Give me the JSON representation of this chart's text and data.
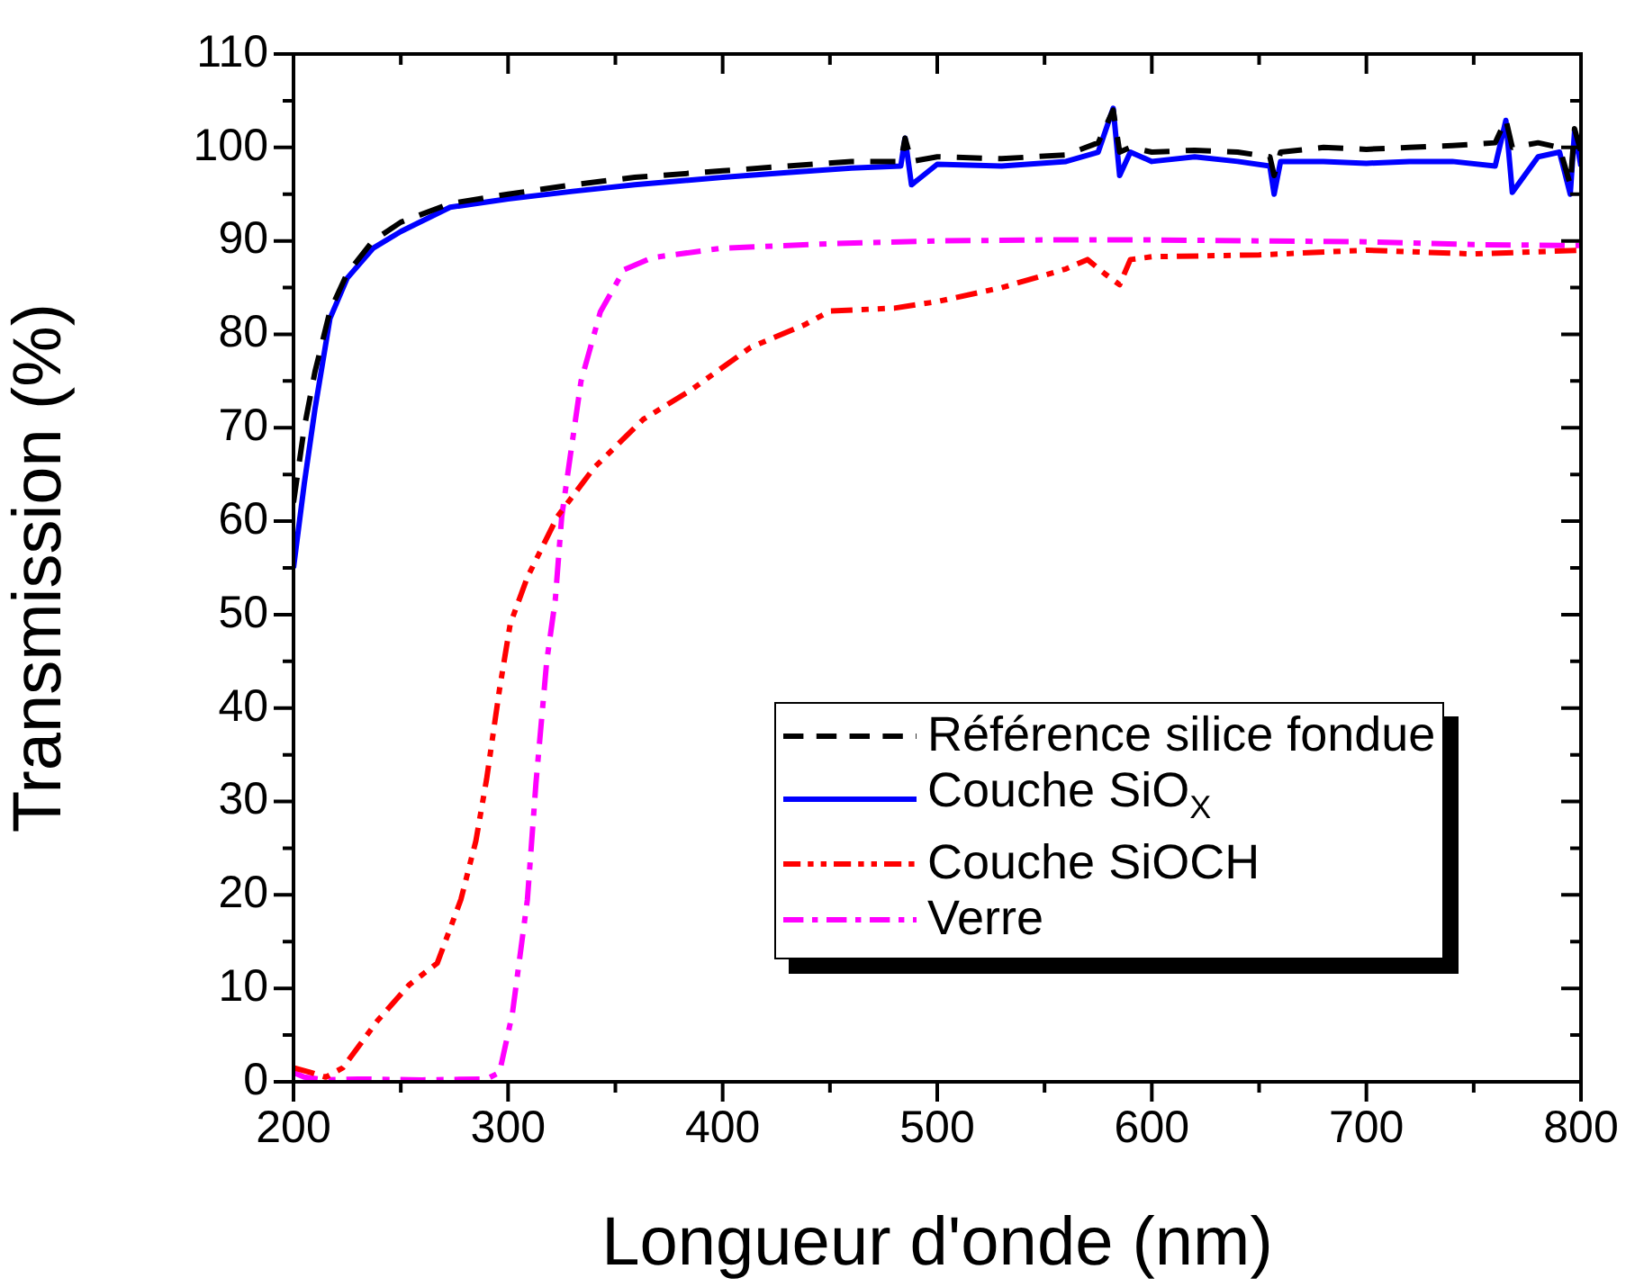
{
  "chart_data": {
    "type": "line",
    "xlabel": "Longueur d'onde (nm)",
    "ylabel": "Transmission (%)",
    "xlim": [
      200,
      800
    ],
    "xticks": [
      200,
      {
        "value": 250,
        "label": null
      },
      300,
      {
        "value": 350,
        "label": null
      },
      400,
      {
        "value": 450,
        "label": null
      },
      500,
      {
        "value": 550,
        "label": null
      },
      600,
      {
        "value": 650,
        "label": null
      },
      700,
      {
        "value": 750,
        "label": null
      },
      800
    ],
    "ylim": [
      0,
      110
    ],
    "yticks": [
      0,
      {
        "value": 5,
        "label": null
      },
      10,
      {
        "value": 15,
        "label": null
      },
      20,
      {
        "value": 25,
        "label": null
      },
      30,
      {
        "value": 35,
        "label": null
      },
      40,
      {
        "value": 45,
        "label": null
      },
      50,
      {
        "value": 55,
        "label": null
      },
      60,
      {
        "value": 65,
        "label": null
      },
      70,
      {
        "value": 75,
        "label": null
      },
      80,
      {
        "value": 85,
        "label": null
      },
      90,
      {
        "value": 95,
        "label": null
      },
      100,
      {
        "value": 105,
        "label": null
      },
      110
    ],
    "grid": false,
    "legend": "bottom right",
    "marker": "none",
    "series": [
      {
        "name": "Référence silice fondue",
        "color": "#000000",
        "line_style": "dashed",
        "x": [
          200,
          205,
          210,
          217,
          225,
          237,
          250,
          273,
          300,
          330,
          359,
          400,
          430,
          460,
          483,
          485,
          488,
          500,
          530,
          560,
          575,
          582,
          585,
          590,
          600,
          620,
          640,
          655,
          657,
          660,
          680,
          700,
          720,
          740,
          760,
          765,
          768,
          780,
          790,
          795,
          797,
          800
        ],
        "values": [
          62,
          70,
          76,
          82.5,
          86.5,
          90,
          92,
          94,
          95,
          96,
          96.8,
          97.5,
          98,
          98.5,
          98.5,
          101,
          98.5,
          99,
          98.8,
          99.2,
          100.5,
          104,
          99.5,
          100,
          99.5,
          99.7,
          99.5,
          99,
          97,
          99.5,
          100,
          99.8,
          100,
          100.2,
          100.5,
          103,
          100,
          100.5,
          100,
          96,
          102,
          99.5
        ]
      },
      {
        "name": "Couche SiO$_{X}$",
        "color": "#0000ff",
        "line_style": "solid",
        "x": [
          200,
          205,
          210,
          217,
          225,
          237,
          250,
          273,
          300,
          330,
          359,
          400,
          430,
          460,
          483,
          485,
          488,
          500,
          530,
          560,
          575,
          582,
          585,
          590,
          600,
          620,
          640,
          655,
          657,
          660,
          680,
          700,
          720,
          740,
          760,
          765,
          768,
          780,
          790,
          795,
          797,
          800
        ],
        "values": [
          55,
          64,
          72,
          81.7,
          86,
          89.2,
          91,
          93.6,
          94.5,
          95.3,
          96,
          96.8,
          97.3,
          97.8,
          98,
          101,
          96,
          98.2,
          98,
          98.5,
          99.5,
          104.2,
          97,
          99.5,
          98.5,
          99,
          98.5,
          98,
          95,
          98.5,
          98.5,
          98.3,
          98.5,
          98.5,
          98,
          102.9,
          95.2,
          99,
          99.5,
          95,
          101.7,
          98
        ]
      },
      {
        "name": "Couche SiOCH",
        "color": "#ff0000",
        "line_style": "dashdotdot",
        "x": [
          200,
          208,
          215,
          223,
          239,
          254,
          267,
          278,
          285,
          290,
          296,
          301,
          309,
          323,
          340,
          363,
          385,
          413,
          438,
          450,
          480,
          500,
          530,
          560,
          570,
          578,
          585,
          590,
          600,
          650,
          700,
          750,
          800
        ],
        "values": [
          1.5,
          1,
          0.5,
          1.5,
          6.5,
          10.4,
          12.7,
          19.5,
          25.8,
          32.4,
          42,
          49,
          54,
          60.5,
          65.7,
          70.9,
          74,
          78.6,
          81,
          82.5,
          82.8,
          83.5,
          85,
          87,
          88,
          86.5,
          85.3,
          88,
          88.3,
          88.5,
          89,
          88.6,
          89
        ]
      },
      {
        "name": "Verre",
        "color": "#ff00ff",
        "line_style": "dashdot",
        "x": [
          200,
          205,
          215,
          230,
          260,
          290,
          296,
          302,
          309,
          313,
          318,
          322,
          325,
          329,
          334,
          343,
          354,
          367,
          399,
          450,
          500,
          550,
          600,
          650,
          700,
          750,
          800
        ],
        "values": [
          1,
          0.5,
          0.2,
          0.3,
          0.2,
          0.3,
          1,
          7.3,
          19.5,
          32,
          45,
          51.6,
          60.5,
          67,
          75,
          82.4,
          86.9,
          88.2,
          89.2,
          89.7,
          90,
          90.1,
          90.1,
          90,
          89.9,
          89.6,
          89.5
        ]
      }
    ]
  }
}
